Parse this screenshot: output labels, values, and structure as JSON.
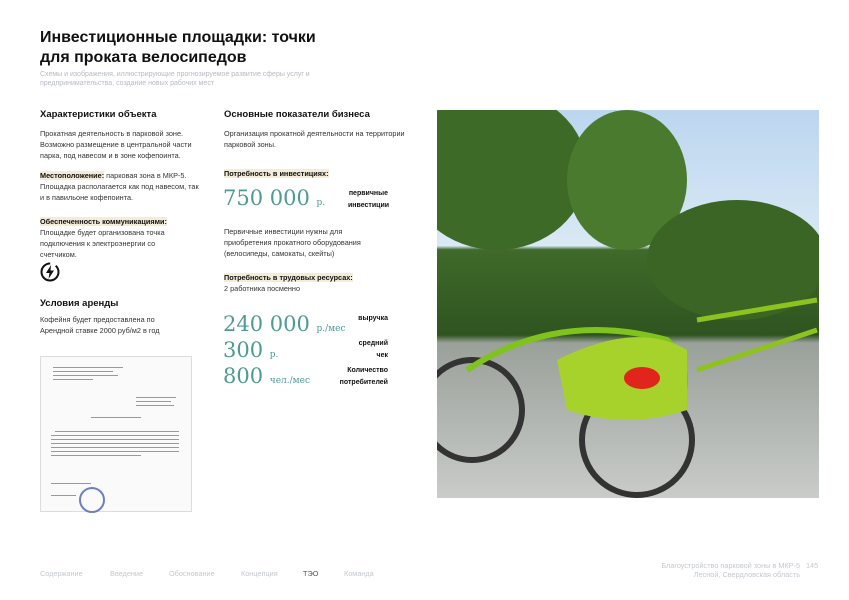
{
  "title": "Инвестиционные площадки: точки для проката велосипедов",
  "subtitle": "Схемы и изображения, иллюстрирующие прогнозируемое развитие сферы услуг и предпринимательства, создание новых рабочих мест",
  "left": {
    "heading": "Характеристики объекта",
    "intro": "Прокатная деятельность в парковой зоне. Возможно размещение в центральной части парка, под навесом и в зоне кофепоинта.",
    "location_label": "Местоположение:",
    "location_text": " парковая зона в МКР-5. Площадка располагается как под навесом, так и в павильоне кофепоинта.",
    "comm_label": "Обеспеченность коммуникациями:",
    "comm_text": "Площадке будет организована точка подключения к электроэнергии со счетчиком.",
    "icon": "lightning-icon",
    "rent_heading": "Условия аренды",
    "rent_text": "Кофейня будет предоставлена по Арендной ставке 2000 руб/м2 в год"
  },
  "right": {
    "heading": "Основные показатели бизнеса",
    "intro": "Организация прокатной деятельности на территории парковой зоны.",
    "invest_label": "Потребность в инвестициях:",
    "invest_value": "750 000",
    "invest_unit": "р.",
    "invest_caption": "первичные инвестиции",
    "invest_note": "Первичные инвестиции нужны для приобретения прокатного оборудования  (велосипеды, самокаты, скейты)",
    "labor_label": "Потребность в трудовых ресурсах:",
    "labor_text": "2 работника посменно",
    "metrics": [
      {
        "value": "240 000",
        "unit": "р./мес",
        "caption": "выручка"
      },
      {
        "value": "300",
        "unit": "р.",
        "caption": "средний чек"
      },
      {
        "value": "800",
        "unit": "чел./мес",
        "caption": "Количество потребителей"
      }
    ]
  },
  "nav": [
    "Содержание",
    "Введение",
    "Обоснование",
    "Концепция",
    "ТЭО",
    "Команда"
  ],
  "nav_active": "ТЭО",
  "footer": {
    "project": "Благоустройство парковой зоны в МКР-5",
    "place": "Лесной, Свердловская область",
    "page": "145"
  },
  "colors": {
    "accent": "#4f9a93",
    "highlight": "#f4ecd8"
  }
}
